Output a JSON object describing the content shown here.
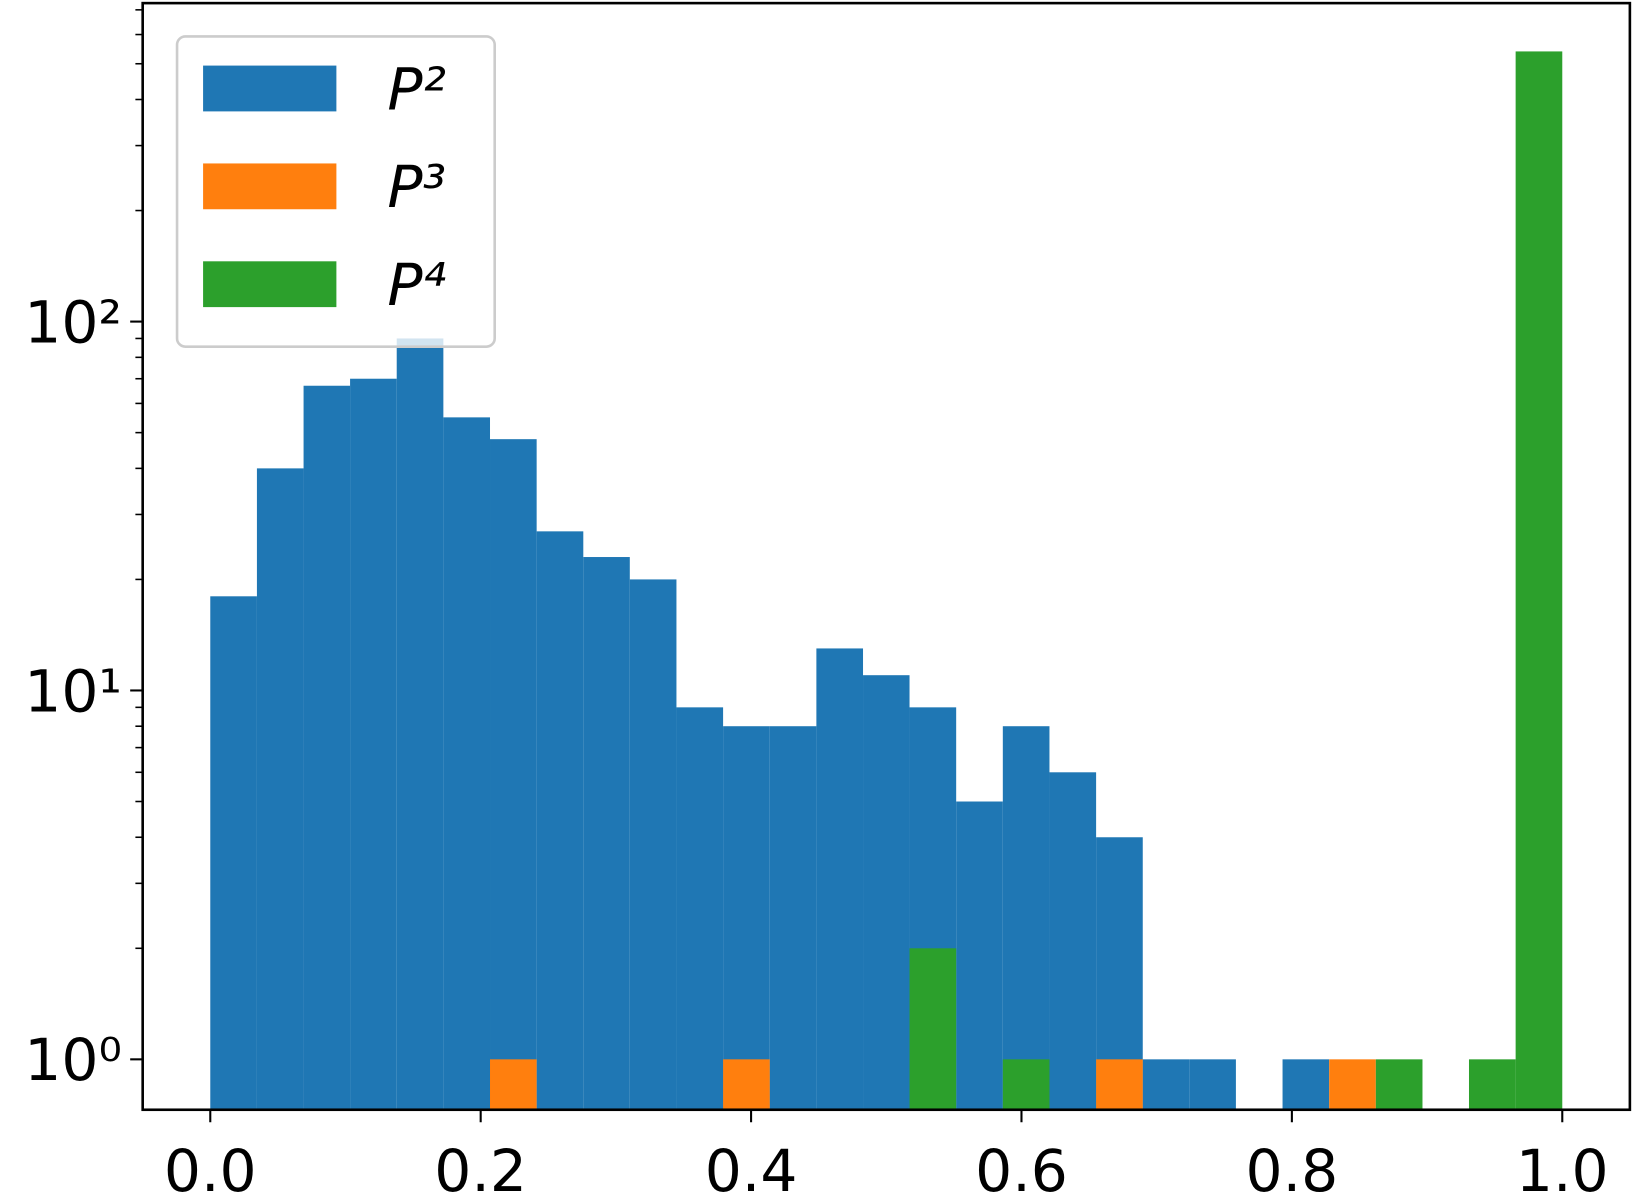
{
  "chart_data": {
    "type": "histogram",
    "ylog": true,
    "bins": [
      0,
      0.0345,
      0.069,
      0.1034,
      0.1379,
      0.1724,
      0.2069,
      0.2414,
      0.2759,
      0.3103,
      0.3448,
      0.3793,
      0.4138,
      0.4483,
      0.4828,
      0.5172,
      0.5517,
      0.5862,
      0.6207,
      0.6552,
      0.6897,
      0.7241,
      0.7586,
      0.7931,
      0.8276,
      0.8621,
      0.8966,
      0.931,
      0.9655,
      1
    ],
    "series": [
      {
        "name": "P²",
        "color": "#1f77b4",
        "values": [
          18,
          40,
          67,
          70,
          90,
          55,
          48,
          27,
          23,
          20,
          9,
          8,
          8,
          13,
          11,
          9,
          5,
          8,
          6,
          4,
          1,
          1,
          0,
          1,
          0,
          0,
          0,
          0,
          0
        ]
      },
      {
        "name": "P³",
        "color": "#ff7f0e",
        "values": [
          0,
          0,
          0,
          0,
          0,
          0,
          1,
          0,
          0,
          0,
          0,
          1,
          0,
          0,
          0,
          0,
          0,
          0,
          0,
          1,
          0,
          0,
          0,
          0,
          1,
          0,
          0,
          0,
          0
        ]
      },
      {
        "name": "P⁴",
        "color": "#2ca02c",
        "values": [
          0,
          0,
          0,
          0,
          0,
          0,
          0,
          0,
          0,
          0,
          0,
          0,
          0,
          0,
          0,
          2,
          0,
          1,
          0,
          0,
          0,
          0,
          0,
          0,
          0,
          1,
          0,
          1,
          540
        ]
      }
    ],
    "xlim": [
      -0.05,
      1.05
    ],
    "xticks": [
      {
        "value": 0,
        "label": "0.0"
      },
      0.2,
      0.4,
      0.6,
      0.8,
      {
        "value": 1,
        "label": "1.0"
      }
    ],
    "ylim": [
      0.73,
      730
    ],
    "yticks": [
      {
        "value": 1,
        "label": "10⁰"
      },
      {
        "value": 10,
        "label": "10¹"
      },
      {
        "value": 100,
        "label": "10²"
      }
    ],
    "yminorticks": [
      2,
      3,
      4,
      5,
      6,
      7,
      8,
      9,
      20,
      30,
      40,
      50,
      60,
      70,
      80,
      90,
      200,
      300,
      400,
      500,
      600,
      700
    ],
    "legend": "upper left"
  }
}
